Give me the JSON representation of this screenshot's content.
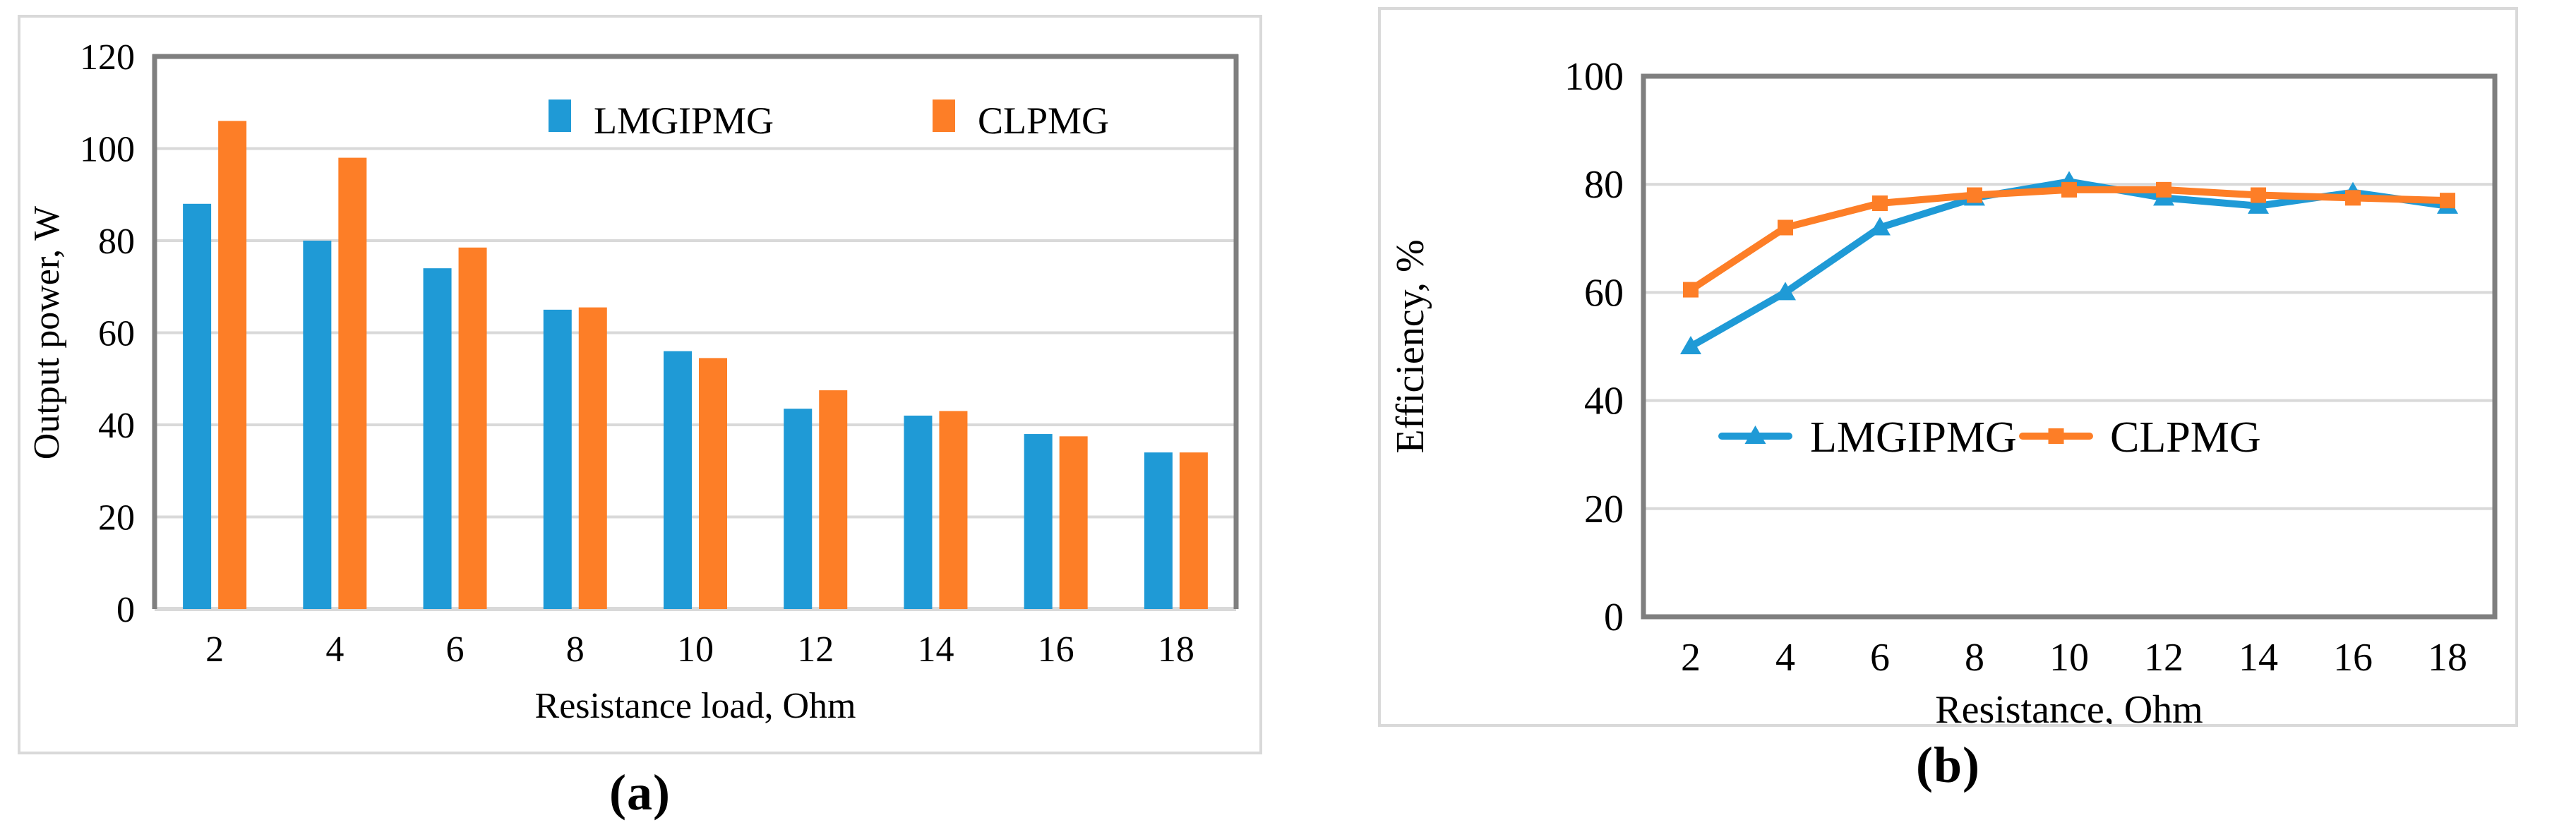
{
  "figure": {
    "captions": [
      "(a)",
      "(b)"
    ],
    "background": "#ffffff"
  },
  "colors": {
    "series_blue": "#1F9AD6",
    "series_orange": "#FD7E27",
    "gridline": "#D9D9D9",
    "plot_border": "#7F7F7F",
    "panel_border": "#D9D9D9",
    "text": "#000000"
  },
  "chart_data": [
    {
      "type": "bar",
      "panel": "a",
      "title": "",
      "xlabel": "Resistance load, Ohm",
      "ylabel": "Output power, W",
      "categories": [
        "2",
        "4",
        "6",
        "8",
        "10",
        "12",
        "14",
        "16",
        "18"
      ],
      "series": [
        {
          "name": "LMGIPMG",
          "color": "#1F9AD6",
          "values": [
            88,
            80,
            74,
            65,
            56,
            43.5,
            42,
            38,
            34
          ]
        },
        {
          "name": "CLPMG",
          "color": "#FD7E27",
          "values": [
            106,
            98,
            78.5,
            65.5,
            54.5,
            47.5,
            43,
            37.5,
            34
          ]
        }
      ],
      "ylim": [
        0,
        120
      ],
      "ytick_step": 20,
      "grid": true,
      "legend_position": "top-inside"
    },
    {
      "type": "line",
      "panel": "b",
      "title": "",
      "xlabel": "Resistance, Ohm",
      "ylabel": "Efficiency, %",
      "categories": [
        "2",
        "4",
        "6",
        "8",
        "10",
        "12",
        "14",
        "16",
        "18"
      ],
      "series": [
        {
          "name": "LMGIPMG",
          "color": "#1F9AD6",
          "marker": "triangle",
          "values": [
            50,
            60,
            72,
            77.5,
            80.5,
            77.5,
            76,
            78.5,
            76
          ]
        },
        {
          "name": "CLPMG",
          "color": "#FD7E27",
          "marker": "square",
          "values": [
            60.5,
            72,
            76.5,
            78,
            79,
            79,
            78,
            77.5,
            77
          ]
        }
      ],
      "ylim": [
        0,
        100
      ],
      "ytick_step": 20,
      "grid": true,
      "legend_position": "center-inside"
    }
  ]
}
